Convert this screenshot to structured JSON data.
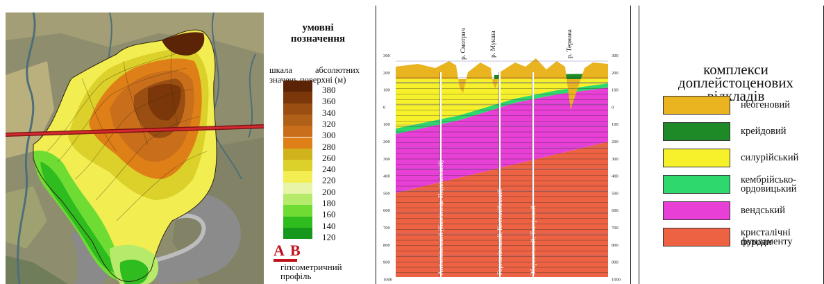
{
  "map_legend": {
    "title_line1": "умовні",
    "title_line2": "позначення",
    "scale_word1": "шкала",
    "scale_word2": "абсолютних",
    "scale_line2": "значень поверхні (м)",
    "scale_levels": [
      {
        "label": "380",
        "color": "#5c2407"
      },
      {
        "label": "360",
        "color": "#7b3709"
      },
      {
        "label": "340",
        "color": "#9a4e12"
      },
      {
        "label": "320",
        "color": "#b1601a"
      },
      {
        "label": "300",
        "color": "#c96f1c"
      },
      {
        "label": "280",
        "color": "#df7f17"
      },
      {
        "label": "260",
        "color": "#cfb21c"
      },
      {
        "label": "240",
        "color": "#dcd02a"
      },
      {
        "label": "220",
        "color": "#f2ee52"
      },
      {
        "label": "200",
        "color": "#e8f4a8"
      },
      {
        "label": "180",
        "color": "#b6ea6a"
      },
      {
        "label": "160",
        "color": "#6fdc34"
      },
      {
        "label": "140",
        "color": "#2fbc1f"
      },
      {
        "label": "120",
        "color": "#16981c"
      }
    ],
    "profile_start_letter": "A",
    "profile_end_letter": "B",
    "profile_caption_line1": "гіпсометричний",
    "profile_caption_line2": "профіль",
    "profile_color": "#c0131b"
  },
  "cross_section": {
    "depth_ticks": [
      "300",
      "200",
      "100",
      "0",
      "100",
      "200",
      "300",
      "400",
      "500",
      "600",
      "700",
      "800",
      "900",
      "1000"
    ],
    "rivers": [
      "р. Смотрич",
      "р. Мукша",
      "р. Тернава"
    ],
    "boreholes": [
      "Антопільський (Кам'янець-Подільський)",
      "Горниківський, Костолійський",
      "Збаражський, Товтровий"
    ]
  },
  "complex_legend": {
    "title_line1": "комплекси",
    "title_line2": "доплейстоценових",
    "title_line3": "відкладів",
    "items": [
      {
        "label_line1": "неогеновий",
        "label_line2": "",
        "color": "#eab420"
      },
      {
        "label_line1": "крейдовий",
        "label_line2": "",
        "color": "#1e8a27"
      },
      {
        "label_line1": "силурійський",
        "label_line2": "",
        "color": "#f7f12c"
      },
      {
        "label_line1": "кембрійсько-",
        "label_line2": "ордовицький",
        "color": "#2ed86c"
      },
      {
        "label_line1": "вендський",
        "label_line2": "",
        "color": "#e83fd6"
      },
      {
        "label_line1": "кристалічні породи",
        "label_line2": "фундаменту",
        "color": "#ec6242"
      }
    ]
  }
}
